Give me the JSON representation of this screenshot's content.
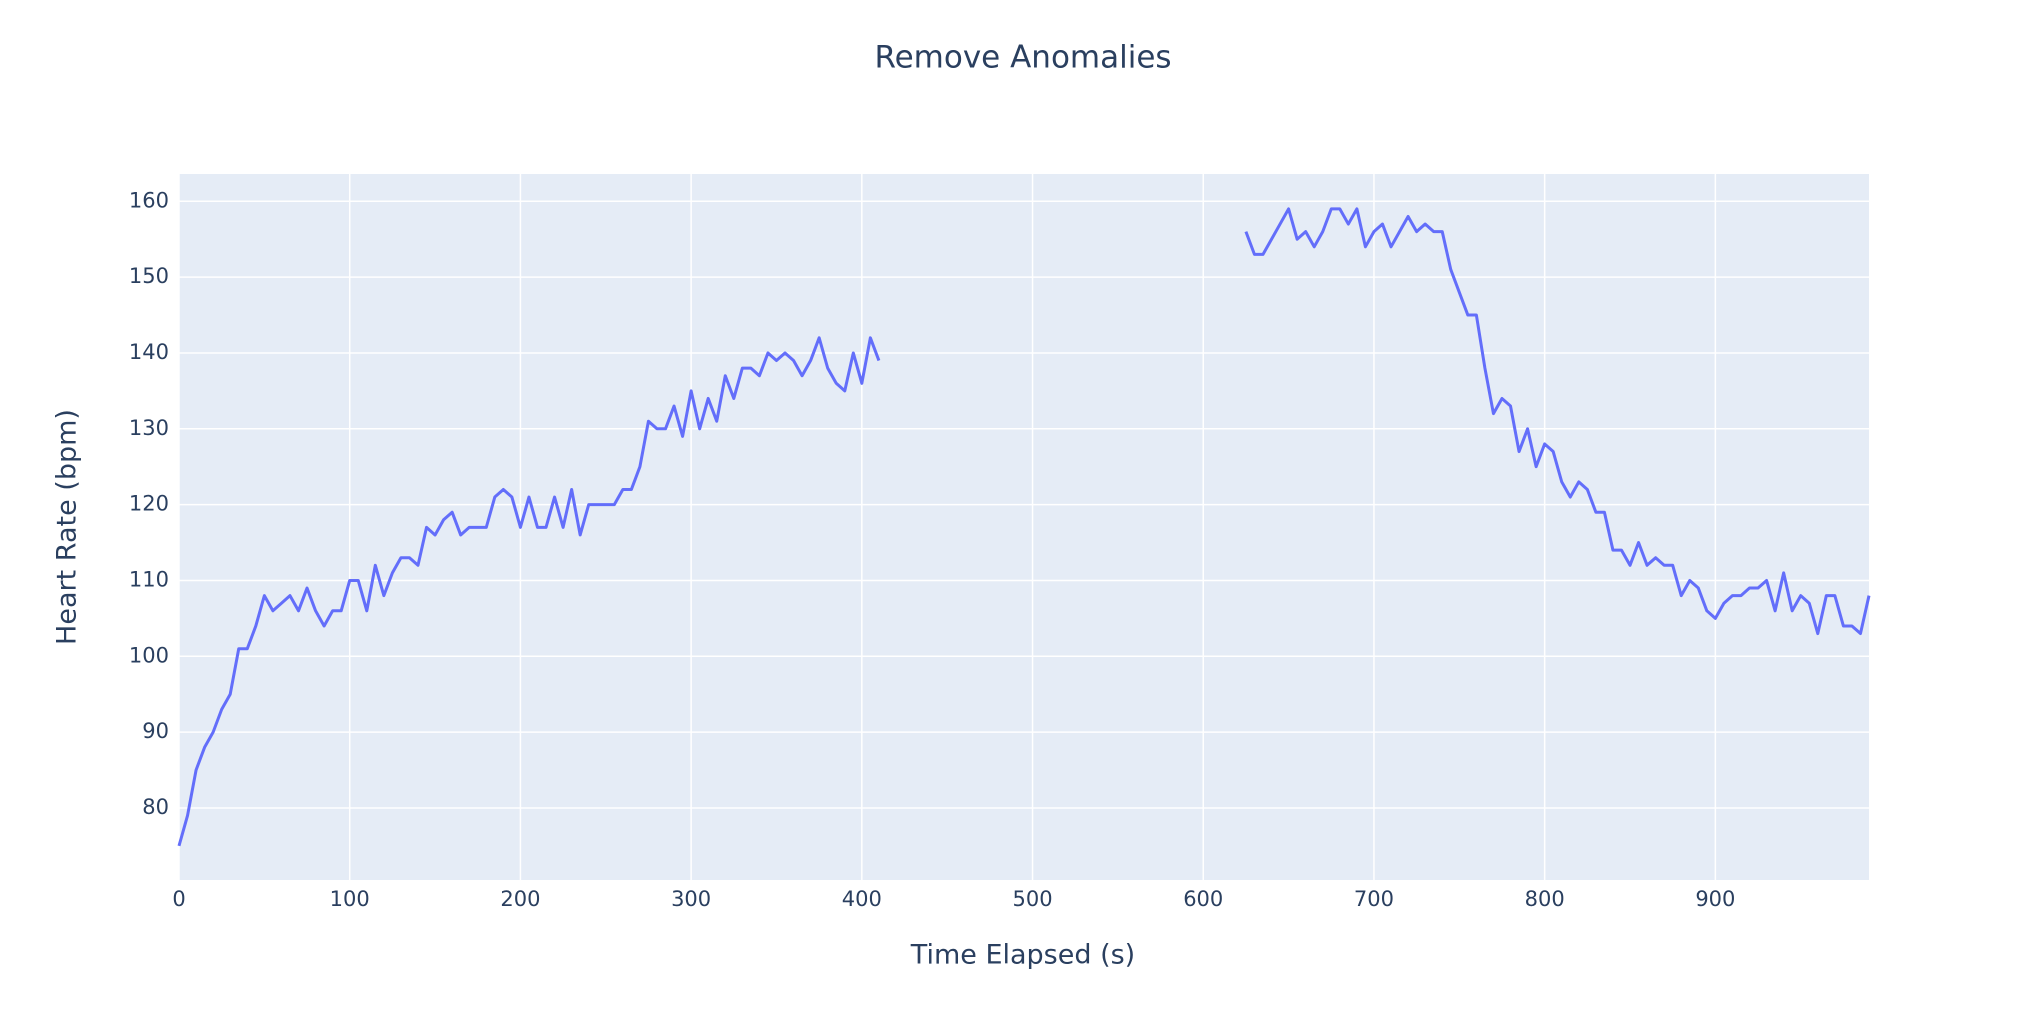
{
  "chart_data": {
    "type": "line",
    "title": "Remove Anomalies",
    "x_label": "Time Elapsed (s)",
    "y_label": "Heart Rate (bpm)",
    "x": [
      0,
      5,
      10,
      15,
      20,
      25,
      30,
      35,
      40,
      45,
      50,
      55,
      60,
      65,
      70,
      75,
      80,
      85,
      90,
      95,
      100,
      105,
      110,
      115,
      120,
      125,
      130,
      135,
      140,
      145,
      150,
      155,
      160,
      165,
      170,
      175,
      180,
      185,
      190,
      195,
      200,
      205,
      210,
      215,
      220,
      225,
      230,
      235,
      240,
      245,
      250,
      255,
      260,
      265,
      270,
      275,
      280,
      285,
      290,
      295,
      300,
      305,
      310,
      315,
      320,
      325,
      330,
      335,
      340,
      345,
      350,
      355,
      360,
      365,
      370,
      375,
      380,
      385,
      390,
      395,
      400,
      405,
      410,
      415,
      625,
      630,
      635,
      640,
      645,
      650,
      655,
      660,
      665,
      670,
      675,
      680,
      685,
      690,
      695,
      700,
      705,
      710,
      715,
      720,
      725,
      730,
      735,
      740,
      745,
      750,
      755,
      760,
      765,
      770,
      775,
      780,
      785,
      790,
      795,
      800,
      805,
      810,
      815,
      820,
      825,
      830,
      835,
      840,
      845,
      850,
      855,
      860,
      865,
      870,
      875,
      880,
      885,
      890,
      895,
      900,
      905,
      910,
      915,
      920,
      925,
      930,
      935,
      940,
      945,
      950,
      955,
      960,
      965,
      970,
      975,
      980,
      985,
      990
    ],
    "series": [
      {
        "name": "Heart Rate",
        "color": "#636efa",
        "values": [
          75,
          79,
          85,
          88,
          90,
          93,
          95,
          101,
          101,
          104,
          108,
          106,
          107,
          108,
          106,
          109,
          106,
          104,
          106,
          106,
          110,
          110,
          106,
          112,
          108,
          111,
          113,
          113,
          112,
          117,
          116,
          118,
          119,
          116,
          117,
          117,
          117,
          121,
          122,
          121,
          117,
          121,
          117,
          117,
          121,
          117,
          122,
          116,
          120,
          120,
          120,
          120,
          122,
          122,
          125,
          131,
          130,
          130,
          133,
          129,
          135,
          130,
          134,
          131,
          137,
          134,
          138,
          138,
          137,
          140,
          139,
          140,
          139,
          137,
          139,
          142,
          138,
          136,
          135,
          140,
          136,
          142,
          139,
          null,
          156,
          153,
          153,
          155,
          157,
          159,
          155,
          156,
          154,
          156,
          159,
          159,
          157,
          159,
          154,
          156,
          157,
          154,
          156,
          158,
          156,
          157,
          156,
          156,
          151,
          148,
          145,
          145,
          138,
          132,
          134,
          133,
          127,
          130,
          125,
          128,
          127,
          123,
          121,
          123,
          122,
          119,
          119,
          114,
          114,
          112,
          115,
          112,
          113,
          112,
          112,
          108,
          110,
          109,
          106,
          105,
          107,
          108,
          108,
          109,
          109,
          110,
          106,
          111,
          106,
          108,
          107,
          103,
          108,
          108,
          104,
          104,
          103,
          108
        ]
      }
    ],
    "xlim": [
      0,
      990
    ],
    "ylim": [
      70.5,
      163.6
    ],
    "xticks": [
      0,
      100,
      200,
      300,
      400,
      500,
      600,
      700,
      800,
      900
    ],
    "yticks": [
      80,
      90,
      100,
      110,
      120,
      130,
      140,
      150,
      160
    ],
    "grid": true
  }
}
